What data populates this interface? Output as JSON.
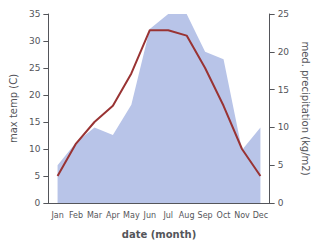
{
  "chart_data": {
    "type": "line",
    "xlabel": "date (month)",
    "ylabel": "max temp (C)",
    "y2label": "med. precipitation (kg/m2)",
    "categories": [
      "Jan",
      "Feb",
      "Mar",
      "Apr",
      "May",
      "Jun",
      "Jul",
      "Aug",
      "Sep",
      "Oct",
      "Nov",
      "Dec"
    ],
    "series": [
      {
        "type": "area",
        "axis": "y2",
        "color": "#b8c4e8",
        "values": [
          5,
          8,
          10,
          9,
          13,
          23,
          25,
          25,
          20,
          19,
          7,
          10
        ]
      },
      {
        "type": "line",
        "color": "#993333",
        "values": [
          5,
          11,
          15,
          18,
          24,
          32,
          32,
          31,
          25,
          18,
          10,
          5
        ]
      }
    ],
    "ylim": [
      0,
      35
    ],
    "yticks": [
      0,
      5,
      10,
      15,
      20,
      25,
      30,
      35
    ],
    "y2lim": [
      0,
      25
    ],
    "y2ticks": [
      0,
      5,
      10,
      15,
      20,
      25
    ],
    "grid": false
  }
}
